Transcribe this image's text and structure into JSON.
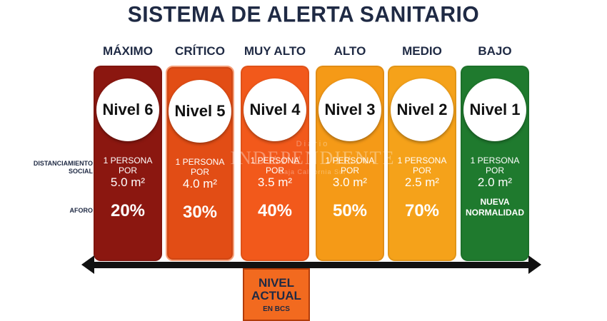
{
  "title": "SISTEMA DE ALERTA SANITARIO",
  "row_labels": {
    "distanciamiento_line1": "DISTANCIAMIENTO",
    "distanciamiento_line2": "SOCIAL",
    "aforo": "AFORO"
  },
  "levels": [
    {
      "name": "MÁXIMO",
      "nivel": "Nivel 6",
      "dist_line1": "1 PERSONA POR",
      "dist_line2": "5.0 m²",
      "aforo": "20%",
      "color": "#8b1710"
    },
    {
      "name": "CRÍTICO",
      "nivel": "Nivel 5",
      "dist_line1": "1 PERSONA POR",
      "dist_line2": "4.0 m²",
      "aforo": "30%",
      "color": "#e24d15"
    },
    {
      "name": "MUY ALTO",
      "nivel": "Nivel 4",
      "dist_line1": "1 PERSONA POR",
      "dist_line2": "3.5 m²",
      "aforo": "40%",
      "color": "#f2591b"
    },
    {
      "name": "ALTO",
      "nivel": "Nivel 3",
      "dist_line1": "1 PERSONA POR",
      "dist_line2": "3.0 m²",
      "aforo": "50%",
      "color": "#f59a17"
    },
    {
      "name": "MEDIO",
      "nivel": "Nivel 2",
      "dist_line1": "1 PERSONA POR",
      "dist_line2": "2.5 m²",
      "aforo": "70%",
      "color": "#f5a21a"
    },
    {
      "name": "BAJO",
      "nivel": "Nivel 1",
      "dist_line1": "1 PERSONA POR",
      "dist_line2": "2.0 m²",
      "aforo_line1": "NUEVA",
      "aforo_line2": "NORMALIDAD",
      "color": "#1f7a2e"
    }
  ],
  "current": {
    "line1": "NIVEL",
    "line2": "ACTUAL",
    "line3": "EN BCS"
  },
  "watermark": {
    "line1": "Diario",
    "line2": "INDEPENDIENTE",
    "line3": "Baja California Sur"
  }
}
